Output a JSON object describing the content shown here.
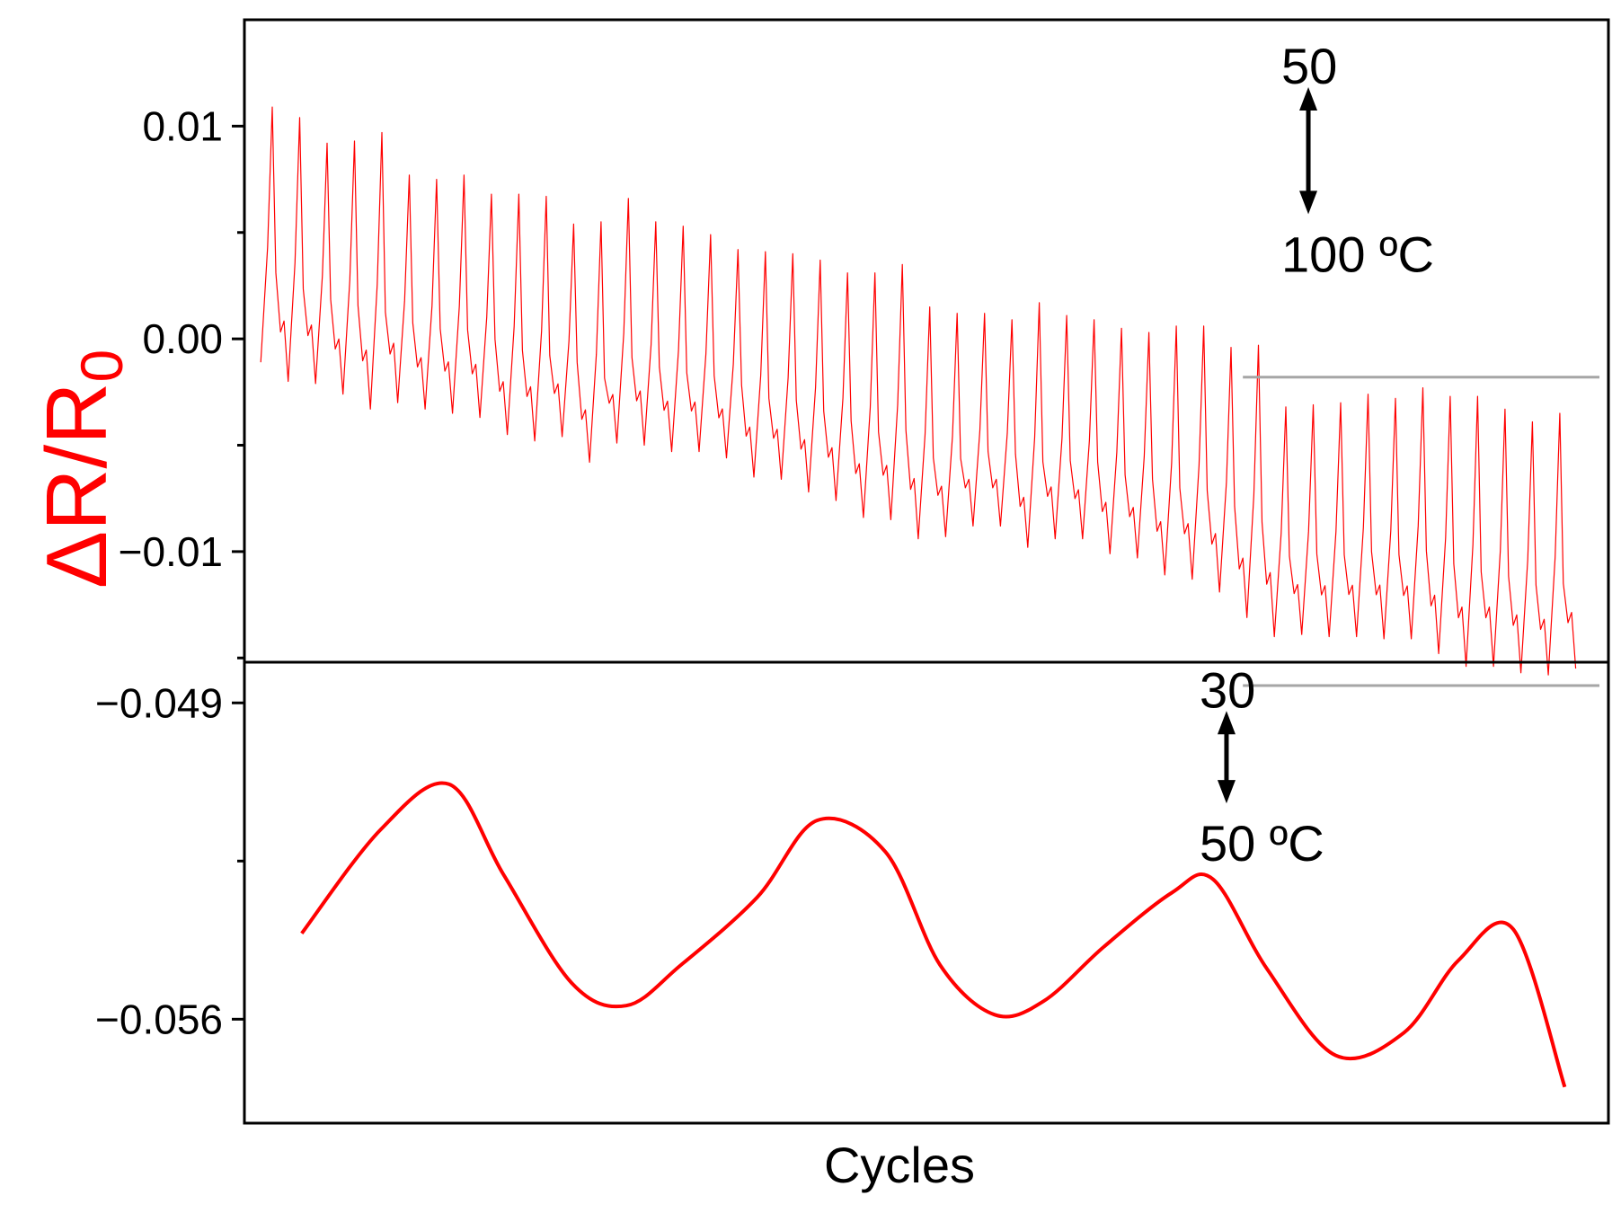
{
  "chart_data": {
    "type": "line",
    "xlabel": "Cycles",
    "ylabel": {
      "main": "ΔR/R",
      "subscript": "0"
    },
    "colors": {
      "series": "#ff0000",
      "axis": "#000000",
      "guide": "#a6a6a6",
      "ylabel": "#ff0000"
    },
    "panels": [
      {
        "id": "top",
        "ylim": [
          -0.0152,
          0.015
        ],
        "yticks": [
          {
            "value": 0.01,
            "label": "0.01"
          },
          {
            "value": 0.0,
            "label": "0.00"
          },
          {
            "value": -0.01,
            "label": "−0.01"
          }
        ],
        "minor_yticks": [
          0.005,
          -0.005,
          -0.015
        ],
        "xlim": [
          0,
          50
        ],
        "cycles": {
          "count": 48,
          "peaks": [
            0.0109,
            0.0104,
            0.0092,
            0.0093,
            0.0097,
            0.0077,
            0.0075,
            0.0077,
            0.0068,
            0.0068,
            0.0067,
            0.0054,
            0.0055,
            0.0066,
            0.0055,
            0.0053,
            0.0049,
            0.0042,
            0.0041,
            0.004,
            0.0037,
            0.0031,
            0.0031,
            0.0035,
            0.0015,
            0.0012,
            0.0012,
            0.0009,
            0.0017,
            0.0011,
            0.0009,
            0.0005,
            0.0003,
            0.0006,
            0.0006,
            -0.0004,
            -0.0003,
            -0.0032,
            -0.0031,
            -0.003,
            -0.0026,
            -0.0028,
            -0.0023,
            -0.0027,
            -0.0027,
            -0.0033,
            -0.0039,
            -0.0035
          ],
          "troughs": [
            -0.002,
            -0.0021,
            -0.0026,
            -0.0033,
            -0.003,
            -0.0033,
            -0.0035,
            -0.0037,
            -0.0045,
            -0.0048,
            -0.0046,
            -0.0058,
            -0.0049,
            -0.005,
            -0.0053,
            -0.0053,
            -0.0056,
            -0.0065,
            -0.0066,
            -0.0072,
            -0.0076,
            -0.0084,
            -0.0085,
            -0.0094,
            -0.0093,
            -0.0088,
            -0.0088,
            -0.0098,
            -0.0094,
            -0.0094,
            -0.0101,
            -0.0103,
            -0.0111,
            -0.0113,
            -0.0119,
            -0.0131,
            -0.014,
            -0.0139,
            -0.014,
            -0.014,
            -0.0141,
            -0.0141,
            -0.0148,
            -0.0154,
            -0.0154,
            -0.0157,
            -0.0158,
            -0.0155
          ]
        },
        "guides": [
          {
            "y": -0.0018,
            "x_range": [
              36.6,
              50
            ]
          },
          {
            "y": -0.0163,
            "x_range": [
              36.6,
              50
            ]
          }
        ],
        "annotation": {
          "top": "50",
          "bottom": "100 ºC",
          "x": 39,
          "y_top": 0.012,
          "y_bottom": 0.004
        }
      },
      {
        "id": "bottom",
        "ylim": [
          -0.0583,
          -0.0481
        ],
        "yticks": [
          {
            "value": -0.049,
            "label": "−0.049"
          },
          {
            "value": -0.056,
            "label": "−0.056"
          }
        ],
        "minor_yticks": [
          -0.0525
        ],
        "xlim": [
          0,
          50
        ],
        "series": {
          "x": [
            2.1,
            5.0,
            7.5,
            9.5,
            12.0,
            14.0,
            16.0,
            18.8,
            21.0,
            23.5,
            25.5,
            27.5,
            29.3,
            31.5,
            34.0,
            35.5,
            37.5,
            40.0,
            42.5,
            44.5,
            46.5,
            48.4
          ],
          "y": [
            -0.0541,
            -0.0518,
            -0.0508,
            -0.0528,
            -0.0552,
            -0.0557,
            -0.0548,
            -0.0533,
            -0.0516,
            -0.0523,
            -0.0548,
            -0.0559,
            -0.0556,
            -0.0544,
            -0.0532,
            -0.0529,
            -0.0549,
            -0.0568,
            -0.0563,
            -0.0547,
            -0.054,
            -0.0575
          ]
        },
        "annotation": {
          "top": "30",
          "bottom": "50 ºC",
          "x": 36,
          "y_top": -0.0491,
          "y_bottom": -0.0521
        }
      }
    ]
  }
}
